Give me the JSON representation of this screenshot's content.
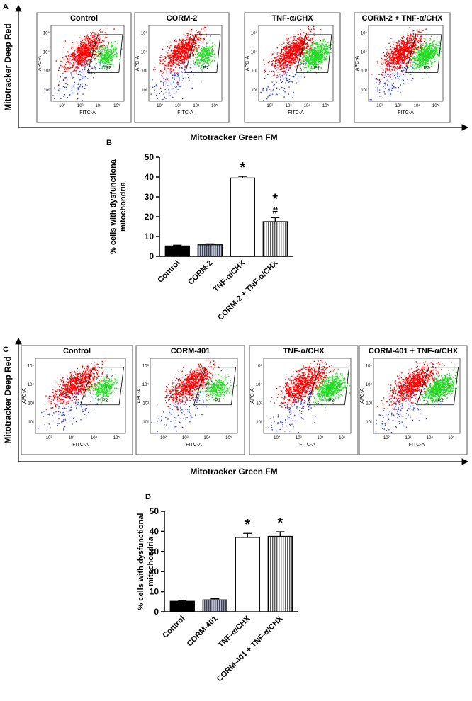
{
  "panel_a": {
    "label": "A",
    "y_axis_label": "Mitotracker Deep Red",
    "x_axis_label": "Mitotracker Green FM",
    "plots": [
      {
        "title": "Control"
      },
      {
        "title": "CORM-2"
      },
      {
        "title": "TNF-α/CHX"
      },
      {
        "title": "CORM-2 + TNF-α/CHX"
      }
    ]
  },
  "panel_c": {
    "label": "C",
    "y_axis_label": "Mitotracker Deep Red",
    "x_axis_label": "Mitotracker Green FM",
    "plots": [
      {
        "title": "Control"
      },
      {
        "title": "CORM-401"
      },
      {
        "title": "TNF-α/CHX"
      },
      {
        "title": "CORM-401 + TNF-α/CHX"
      }
    ]
  },
  "flow_axes": {
    "x_label": "FITC-A",
    "y_label": "APC-A",
    "gate_label": "P2",
    "ticks": [
      "10²",
      "10³",
      "10⁴",
      "10⁵"
    ]
  },
  "chart_data": [
    {
      "type": "bar",
      "panel_label": "B",
      "ylabel": [
        "% cells with dysfunctiona",
        "mitochondria"
      ],
      "categories": [
        "Control",
        "CORM-2",
        "TNF-α/CHX",
        "CORM-2 + TNF-α/CHX"
      ],
      "values": [
        5.2,
        5.8,
        39.5,
        17.5
      ],
      "errors": [
        0.4,
        0.5,
        0.8,
        2
      ],
      "colors": [
        "#000000",
        "#b8bcd8",
        "#ffffff",
        "#ffffff"
      ],
      "patterns": [
        "solid",
        "vertical-lines",
        "solid",
        "vertical-lines"
      ],
      "annotations": [
        null,
        null,
        [
          "*"
        ],
        [
          "*",
          "#"
        ]
      ],
      "ylim": [
        0,
        50
      ],
      "yticks": [
        0,
        10,
        20,
        30,
        40,
        50
      ]
    },
    {
      "type": "bar",
      "panel_label": "D",
      "ylabel": [
        "% cells with dysfunctional",
        "mitochondria"
      ],
      "categories": [
        "Control",
        "CORM-401",
        "TNF-α/CHX",
        "CORM-401 + TNF-α/CHX"
      ],
      "values": [
        5.2,
        5.9,
        37,
        37.5
      ],
      "errors": [
        0.4,
        0.6,
        2,
        2.3
      ],
      "colors": [
        "#000000",
        "#b8bcd8",
        "#ffffff",
        "#ffffff"
      ],
      "patterns": [
        "solid",
        "vertical-lines",
        "solid",
        "vertical-lines"
      ],
      "annotations": [
        null,
        null,
        [
          "*"
        ],
        [
          "*"
        ]
      ],
      "ylim": [
        0,
        50
      ],
      "yticks": [
        0,
        10,
        20,
        30,
        40,
        50
      ]
    }
  ]
}
